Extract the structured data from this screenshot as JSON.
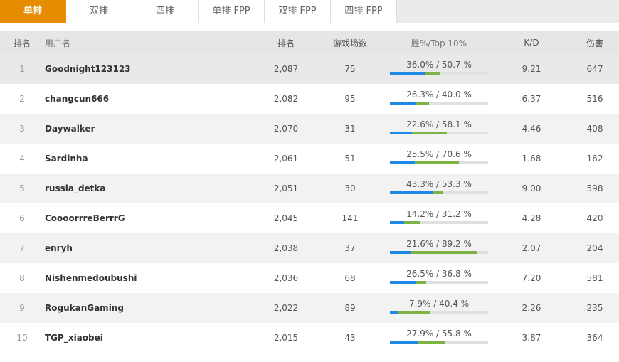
{
  "tabs": [
    {
      "label": "单排",
      "active": true
    },
    {
      "label": "双排",
      "active": false
    },
    {
      "label": "四排",
      "active": false
    },
    {
      "label": "单排 FPP",
      "active": false
    },
    {
      "label": "双排 FPP",
      "active": false
    },
    {
      "label": "四排 FPP",
      "active": false
    }
  ],
  "header": {
    "rank": "排名",
    "username": "用户名",
    "rating": "排名",
    "games": "游戏场数",
    "winrate": "胜%/Top 10%",
    "kd": "K/D",
    "damage": "伤害"
  },
  "colors": {
    "accent": "#e68c00",
    "win_bar": "#1e88e5",
    "top10_bar": "#7cb342"
  },
  "rows": [
    {
      "rank": "1",
      "name": "Goodnight123123",
      "rating": "2,087",
      "games": "75",
      "win": 36.0,
      "top10": 50.7,
      "winrate": "36.0% / 50.7 %",
      "kd": "9.21",
      "damage": "647"
    },
    {
      "rank": "2",
      "name": "changcun666",
      "rating": "2,082",
      "games": "95",
      "win": 26.3,
      "top10": 40.0,
      "winrate": "26.3% / 40.0 %",
      "kd": "6.37",
      "damage": "516"
    },
    {
      "rank": "3",
      "name": "Daywalker",
      "rating": "2,070",
      "games": "31",
      "win": 22.6,
      "top10": 58.1,
      "winrate": "22.6% / 58.1 %",
      "kd": "4.46",
      "damage": "408"
    },
    {
      "rank": "4",
      "name": "Sardinha",
      "rating": "2,061",
      "games": "51",
      "win": 25.5,
      "top10": 70.6,
      "winrate": "25.5% / 70.6 %",
      "kd": "1.68",
      "damage": "162"
    },
    {
      "rank": "5",
      "name": "russia_detka",
      "rating": "2,051",
      "games": "30",
      "win": 43.3,
      "top10": 53.3,
      "winrate": "43.3% / 53.3 %",
      "kd": "9.00",
      "damage": "598"
    },
    {
      "rank": "6",
      "name": "CoooorrreBerrrG",
      "rating": "2,045",
      "games": "141",
      "win": 14.2,
      "top10": 31.2,
      "winrate": "14.2% / 31.2 %",
      "kd": "4.28",
      "damage": "420"
    },
    {
      "rank": "7",
      "name": "enryh",
      "rating": "2,038",
      "games": "37",
      "win": 21.6,
      "top10": 89.2,
      "winrate": "21.6% / 89.2 %",
      "kd": "2.07",
      "damage": "204"
    },
    {
      "rank": "8",
      "name": "Nishenmedoubushi",
      "rating": "2,036",
      "games": "68",
      "win": 26.5,
      "top10": 36.8,
      "winrate": "26.5% / 36.8 %",
      "kd": "7.20",
      "damage": "581"
    },
    {
      "rank": "9",
      "name": "RogukanGaming",
      "rating": "2,022",
      "games": "89",
      "win": 7.9,
      "top10": 40.4,
      "winrate": "7.9% / 40.4 %",
      "kd": "2.26",
      "damage": "235"
    },
    {
      "rank": "10",
      "name": "TGP_xiaobei",
      "rating": "2,015",
      "games": "43",
      "win": 27.9,
      "top10": 55.8,
      "winrate": "27.9% / 55.8 %",
      "kd": "3.87",
      "damage": "364"
    }
  ]
}
